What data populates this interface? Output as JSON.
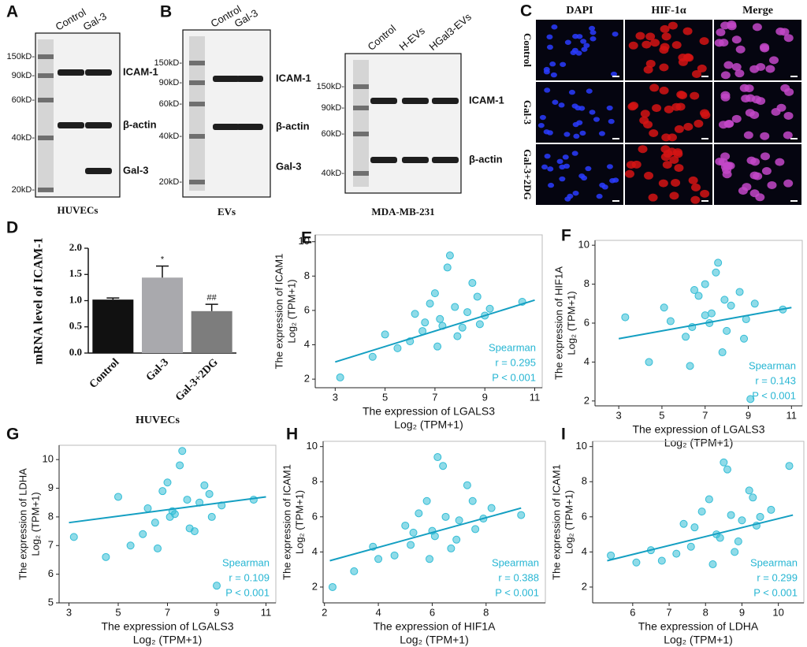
{
  "blots": [
    {
      "letter": "A",
      "lanes": [
        "Control",
        "Gal-3"
      ],
      "markers": [
        "150kD-",
        "90kD-",
        "60kD-",
        "40kD-",
        "20kD-"
      ],
      "bands": [
        "ICAM-1",
        "β-actin",
        "Gal-3"
      ],
      "caption": "HUVECs"
    },
    {
      "letter": "B",
      "lanes": [
        "Control",
        "Gal-3"
      ],
      "markers": [
        "150kD-",
        "90kD-",
        "60kD-",
        "40kD-",
        "20kD-"
      ],
      "bands": [
        "ICAM-1",
        "β-actin",
        "Gal-3"
      ],
      "caption": "EVs"
    },
    {
      "lanes": [
        "Control",
        "H-EVs",
        "HGal3-EVs"
      ],
      "markers": [
        "150kD-",
        "90kD-",
        "60kD-",
        "40kD-"
      ],
      "bands": [
        "ICAM-1",
        "β-actin"
      ],
      "caption": "MDA-MB-231"
    }
  ],
  "microscopy": {
    "letter": "C",
    "columns": [
      "DAPI",
      "HIF-1α",
      "Merge"
    ],
    "rows": [
      "Control",
      "Gal-3",
      "Gal-3+2DG"
    ]
  },
  "bar_chart": {
    "letter": "D",
    "type": "bar",
    "y_label": "mRNA level of ICAM-1",
    "categories": [
      "Control",
      "Gal-3",
      "Gal-3+2DG"
    ],
    "values": [
      1.02,
      1.44,
      0.8
    ],
    "errors": [
      0.03,
      0.22,
      0.13
    ],
    "colors": [
      "#111111",
      "#a9a9ad",
      "#7d7d7d"
    ],
    "annotations": [
      {
        "category_index": 1,
        "text": "*"
      },
      {
        "category_index": 2,
        "text": "##"
      }
    ],
    "ylim": [
      0,
      2.0
    ],
    "yticks": [
      {
        "value": 0,
        "label": "0.0"
      },
      0.5,
      {
        "value": 1,
        "label": "1.0"
      },
      1.5,
      {
        "value": 2,
        "label": "2.0"
      }
    ],
    "caption": "HUVECs"
  },
  "scatter_plots": [
    {
      "letter": "E",
      "type": "scatter",
      "x_label": "The expression of LGALS3",
      "x_unit": "Log₂ (TPM+1)",
      "y_label": "The expression of ICAM1",
      "y_unit": "Log₂ (TPM+1)",
      "xlim": [
        2.2,
        11.3
      ],
      "ylim": [
        1.5,
        10.4
      ],
      "xticks": [
        3,
        5,
        7,
        9,
        11
      ],
      "yticks": [
        2,
        4,
        6,
        8,
        10
      ],
      "color": "#33bdd6",
      "x": [
        7.2,
        7.8,
        6.5,
        8.3,
        7.0,
        8.8,
        6.0,
        7.5,
        5.5,
        9.2,
        7.9,
        6.8,
        4.5,
        8.5,
        7.3,
        3.2,
        10.5,
        6.2,
        8.1,
        7.6,
        5.0,
        9.0,
        7.1,
        8.7,
        6.6
      ],
      "y": [
        5.5,
        6.2,
        4.8,
        5.9,
        7.0,
        5.2,
        4.2,
        8.5,
        3.8,
        6.1,
        4.5,
        6.4,
        3.3,
        7.6,
        5.1,
        2.1,
        6.5,
        5.8,
        5.0,
        9.2,
        4.6,
        5.7,
        3.9,
        6.8,
        5.3
      ],
      "fit": {
        "x": [
          3,
          11
        ],
        "y": [
          3.0,
          6.6
        ]
      },
      "stats": [
        "Spearman",
        "r = 0.295",
        "P < 0.001"
      ]
    },
    {
      "letter": "F",
      "type": "scatter",
      "x_label": "The expression of LGALS3",
      "x_unit": "Log₂ (TPM+1)",
      "y_label": "The expression of HIF1A",
      "y_unit": "Log₂ (TPM+1)",
      "xlim": [
        1.9,
        11.5
      ],
      "ylim": [
        1.75,
        10.25
      ],
      "xticks": [
        3,
        5,
        7,
        9,
        11
      ],
      "yticks": [
        2,
        4,
        6,
        8,
        10
      ],
      "color": "#33bdd6",
      "x": [
        7.3,
        7.9,
        6.4,
        8.2,
        7.0,
        8.9,
        6.1,
        7.6,
        5.4,
        9.3,
        7.8,
        6.7,
        4.4,
        8.6,
        7.2,
        3.3,
        10.6,
        6.3,
        8.0,
        7.5,
        5.1,
        9.1,
        7.0,
        8.8,
        6.5
      ],
      "y": [
        6.5,
        7.2,
        5.8,
        6.9,
        8.0,
        6.2,
        5.3,
        9.1,
        6.1,
        7.0,
        4.5,
        7.4,
        4.0,
        7.6,
        6.0,
        6.3,
        6.7,
        3.8,
        5.6,
        8.6,
        6.8,
        2.1,
        6.4,
        5.2,
        7.7
      ],
      "fit": {
        "x": [
          3,
          11
        ],
        "y": [
          5.2,
          6.8
        ]
      },
      "stats": [
        "Spearman",
        "r = 0.143",
        "P < 0.001"
      ]
    },
    {
      "letter": "G",
      "type": "scatter",
      "x_label": "The expression of LGALS3",
      "x_unit": "Log₂ (TPM+1)",
      "y_label": "The expression of LDHA",
      "y_unit": "Log₂ (TPM+1)",
      "xlim": [
        2.6,
        11.4
      ],
      "ylim": [
        5,
        10.5
      ],
      "xticks": [
        3,
        5,
        7,
        9,
        11
      ],
      "yticks": [
        5,
        6,
        7,
        8,
        9,
        10
      ],
      "color": "#33bdd6",
      "x": [
        7.2,
        7.8,
        6.5,
        8.3,
        7.0,
        8.8,
        6.0,
        7.5,
        5.5,
        9.2,
        7.9,
        6.8,
        4.5,
        8.5,
        7.3,
        3.2,
        10.5,
        6.2,
        8.1,
        7.6,
        5.0,
        9.0,
        7.1,
        8.7,
        6.6
      ],
      "y": [
        8.2,
        8.6,
        7.8,
        8.5,
        9.2,
        8.0,
        7.4,
        9.8,
        7.0,
        8.4,
        7.6,
        8.9,
        6.6,
        9.1,
        8.1,
        7.3,
        8.6,
        8.3,
        7.5,
        10.3,
        8.7,
        5.6,
        8.0,
        8.8,
        6.9
      ],
      "fit": {
        "x": [
          3,
          11
        ],
        "y": [
          7.8,
          8.7
        ]
      },
      "stats": [
        "Spearman",
        "r = 0.109",
        "P < 0.001"
      ]
    },
    {
      "letter": "H",
      "type": "scatter",
      "x_label": "The expression of HIF1A",
      "x_unit": "Log₂ (TPM+1)",
      "y_label": "The expression of ICAM1",
      "y_unit": "Log₂ (TPM+1)",
      "xlim": [
        1.95,
        10.2
      ],
      "ylim": [
        1.1,
        10.3
      ],
      "xticks": [
        2,
        4,
        6,
        8
      ],
      "yticks": [
        2,
        4,
        6,
        8,
        10
      ],
      "color": "#33bdd6",
      "x": [
        6.0,
        6.5,
        5.2,
        7.0,
        5.8,
        7.6,
        4.6,
        6.2,
        4.0,
        8.2,
        6.7,
        5.5,
        3.1,
        7.3,
        6.1,
        2.3,
        9.3,
        5.0,
        6.9,
        6.4,
        3.8,
        7.9,
        5.9,
        7.5,
        5.3
      ],
      "y": [
        5.2,
        6.0,
        4.4,
        5.8,
        6.9,
        5.3,
        3.8,
        9.4,
        3.6,
        6.5,
        4.2,
        6.2,
        2.9,
        7.8,
        4.9,
        2.0,
        6.1,
        5.5,
        4.7,
        8.9,
        4.3,
        5.9,
        3.6,
        6.9,
        5.1
      ],
      "fit": {
        "x": [
          2.2,
          9.3
        ],
        "y": [
          3.5,
          6.5
        ]
      },
      "stats": [
        "Spearman",
        "r = 0.388",
        "P < 0.001"
      ]
    },
    {
      "letter": "I",
      "type": "scatter",
      "x_label": "The expression of LDHA",
      "x_unit": "Log₂ (TPM+1)",
      "y_label": "The expression of ICAM1",
      "y_unit": "Log₂ (TPM+1)",
      "xlim": [
        4.9,
        10.7
      ],
      "ylim": [
        1.1,
        10.3
      ],
      "xticks": [
        6,
        7,
        8,
        9,
        10
      ],
      "yticks": [
        2,
        4,
        6,
        8,
        10
      ],
      "color": "#33bdd6",
      "x": [
        8.3,
        8.7,
        7.6,
        9.0,
        8.1,
        9.4,
        7.2,
        8.5,
        6.8,
        9.8,
        8.8,
        7.9,
        6.1,
        9.2,
        8.4,
        5.4,
        10.3,
        7.4,
        8.9,
        8.6,
        6.5,
        9.5,
        8.2,
        9.3,
        7.7
      ],
      "y": [
        5.0,
        6.1,
        4.3,
        5.8,
        7.0,
        5.5,
        3.9,
        9.1,
        3.5,
        6.4,
        4.0,
        6.3,
        3.4,
        7.5,
        4.8,
        3.8,
        8.9,
        5.6,
        4.6,
        8.7,
        4.1,
        6.0,
        3.3,
        7.1,
        5.4
      ],
      "fit": {
        "x": [
          5.3,
          10.4
        ],
        "y": [
          3.5,
          6.1
        ]
      },
      "stats": [
        "Spearman",
        "r = 0.299",
        "P < 0.001"
      ]
    }
  ]
}
